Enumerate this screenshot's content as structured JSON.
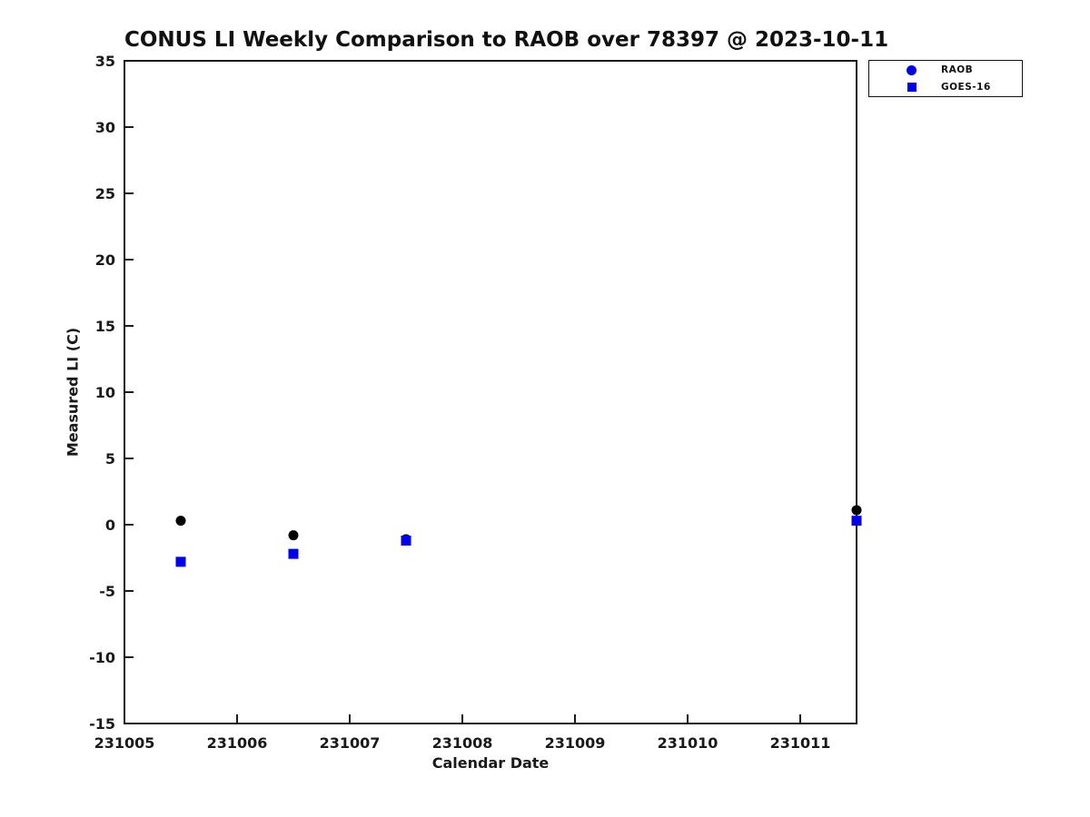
{
  "title": "CONUS LI Weekly Comparison to RAOB over 78397 @ 2023-10-11",
  "colors": {
    "marker_blue": "#0000ee",
    "marker_black": "#000000",
    "axis_line": "#1a1a1a",
    "text": "#1a1a1a",
    "background": "#ffffff"
  },
  "chart_data": {
    "type": "scatter",
    "title": "CONUS LI Weekly Comparison to RAOB over 78397 @ 2023-10-11",
    "xlabel": "Calendar Date",
    "ylabel": "Measured LI (C)",
    "xlim": [
      231005,
      231011.5
    ],
    "ylim": [
      -15,
      35
    ],
    "x_ticks": [
      231005,
      231006,
      231007,
      231008,
      231009,
      231010,
      231011
    ],
    "y_ticks": [
      35,
      30,
      25,
      20,
      15,
      10,
      5,
      0,
      -5,
      -10,
      -15
    ],
    "grid": false,
    "legend_position": "outside-top-right",
    "series": [
      {
        "name": "RAOB",
        "marker": "circle",
        "plot_color": "#000000",
        "legend_color": "#0000ee",
        "x": [
          231005.5,
          231006.5,
          231007.5,
          231011.5
        ],
        "y": [
          0.3,
          -0.8,
          -1.1,
          1.1
        ]
      },
      {
        "name": "GOES-16",
        "marker": "square",
        "plot_color": "#0000ee",
        "legend_color": "#0000ee",
        "x": [
          231005.5,
          231006.5,
          231007.5,
          231011.5
        ],
        "y": [
          -2.8,
          -2.2,
          -1.2,
          0.3
        ]
      }
    ]
  }
}
